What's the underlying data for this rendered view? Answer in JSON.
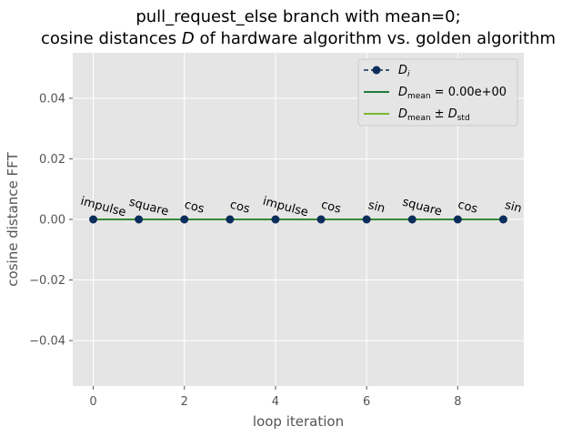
{
  "chart_data": {
    "type": "line",
    "title_line1": "pull_request_else branch with mean=0;",
    "title_line2_pre": "cosine distances ",
    "title_line2_var": "D",
    "title_line2_post": " of hardware algorithm vs. golden algorithm",
    "xlabel": "loop iteration",
    "ylabel": "cosine distance FFT",
    "xlim": [
      -0.45,
      9.45
    ],
    "ylim": [
      -0.055,
      0.055
    ],
    "xticks": [
      0,
      2,
      4,
      6,
      8
    ],
    "yticks": [
      -0.04,
      -0.02,
      0.0,
      0.02,
      0.04
    ],
    "xtick_labels": [
      "0",
      "2",
      "4",
      "6",
      "8"
    ],
    "ytick_labels": [
      "−0.04",
      "−0.02",
      "0.00",
      "0.02",
      "0.04"
    ],
    "grid": true,
    "legend_position": "top-right",
    "series": [
      {
        "name": "D_i",
        "style": "dashed-line-with-markers",
        "color": "#0b2d5b",
        "x": [
          0,
          1,
          2,
          3,
          4,
          5,
          6,
          7,
          8,
          9
        ],
        "y": [
          0,
          0,
          0,
          0,
          0,
          0,
          0,
          0,
          0,
          0
        ],
        "point_labels": [
          "impulse",
          "square",
          "cos",
          "cos",
          "impulse",
          "cos",
          "sin",
          "square",
          "cos",
          "sin"
        ]
      },
      {
        "name": "D_mean = 0.00e+00",
        "style": "solid",
        "color": "#1f7a3a",
        "y": 0
      },
      {
        "name": "D_mean ± D_std",
        "style": "solid",
        "color": "#7cb82f",
        "y_upper": 0,
        "y_lower": 0
      }
    ],
    "legend": {
      "entry1_main": "D",
      "entry1_sub": "i",
      "entry2_main": "D",
      "entry2_sub": "mean",
      "entry2_suffix": " = 0.00e+00",
      "entry3_main": "D",
      "entry3_sub": "mean",
      "entry3_mid": " ± ",
      "entry3_main2": "D",
      "entry3_sub2": "std"
    },
    "colors": {
      "plot_bg": "#e5e5e5",
      "grid": "#ffffff",
      "di": "#0b2d5b",
      "mean": "#1f7a3a",
      "std": "#7cb82f"
    }
  }
}
